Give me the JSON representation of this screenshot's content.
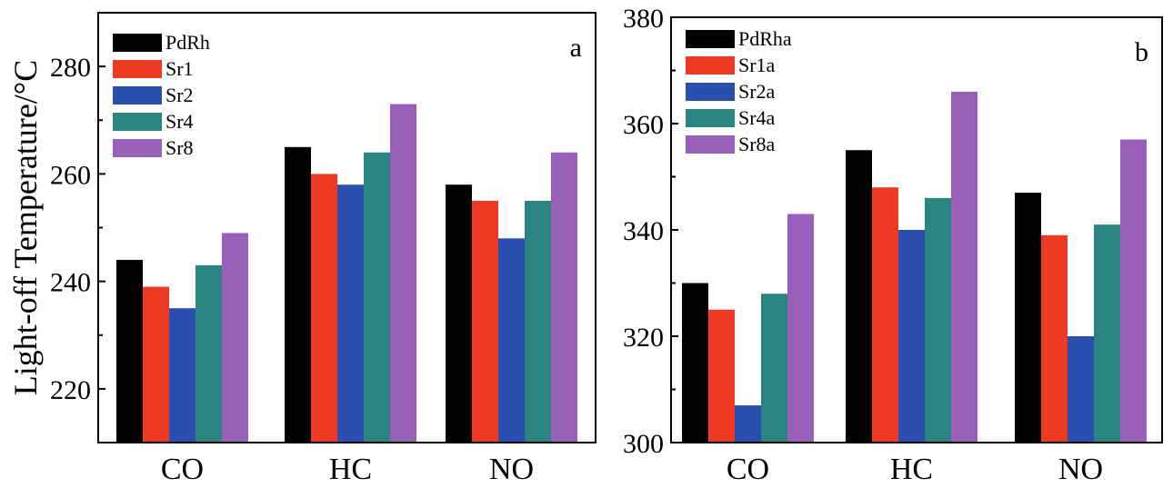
{
  "colors": {
    "series": [
      "#000000",
      "#ee3a24",
      "#2a4fb0",
      "#2a8580",
      "#9a5fb8"
    ],
    "axis": "#000000",
    "background": "#ffffff"
  },
  "chart_data": [
    {
      "type": "bar",
      "panel_label": "a",
      "title": "",
      "xlabel": "",
      "ylabel": "Light-off Temperature/°C",
      "categories": [
        "CO",
        "HC",
        "NO"
      ],
      "ylim": [
        210,
        290
      ],
      "yticks": [
        220,
        240,
        260,
        280
      ],
      "grid": false,
      "legend_position": "top-left",
      "series": [
        {
          "name": "PdRh",
          "values": [
            244,
            265,
            258
          ]
        },
        {
          "name": "Sr1",
          "values": [
            239,
            260,
            255
          ]
        },
        {
          "name": "Sr2",
          "values": [
            235,
            258,
            248
          ]
        },
        {
          "name": "Sr4",
          "values": [
            243,
            264,
            255
          ]
        },
        {
          "name": "Sr8",
          "values": [
            249,
            273,
            264
          ]
        }
      ]
    },
    {
      "type": "bar",
      "panel_label": "b",
      "title": "",
      "xlabel": "",
      "ylabel": "",
      "categories": [
        "CO",
        "HC",
        "NO"
      ],
      "ylim": [
        300,
        380
      ],
      "yticks": [
        300,
        320,
        340,
        360,
        380
      ],
      "grid": false,
      "legend_position": "top-left",
      "series": [
        {
          "name": "PdRha",
          "values": [
            330,
            355,
            347
          ]
        },
        {
          "name": "Sr1a",
          "values": [
            325,
            348,
            339
          ]
        },
        {
          "name": "Sr2a",
          "values": [
            307,
            340,
            320
          ]
        },
        {
          "name": "Sr4a",
          "values": [
            328,
            346,
            341
          ]
        },
        {
          "name": "Sr8a",
          "values": [
            343,
            366,
            357
          ]
        }
      ]
    }
  ]
}
